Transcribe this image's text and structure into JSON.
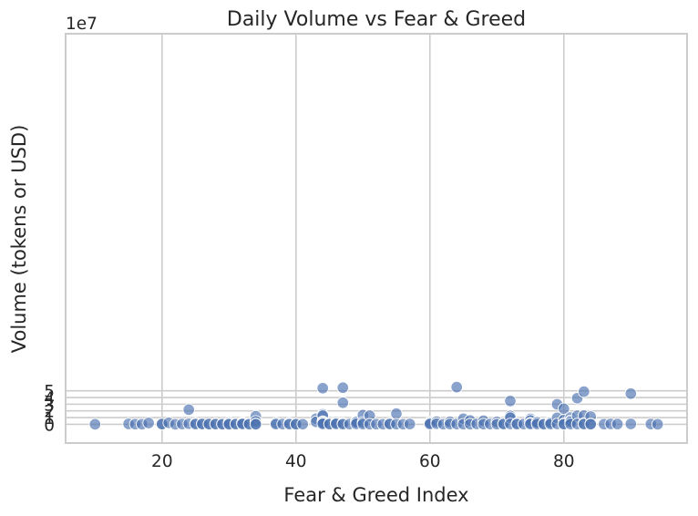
{
  "chart_data": {
    "type": "scatter",
    "title": "Daily Volume vs Fear & Greed",
    "xlabel": "Fear & Greed Index",
    "ylabel": "Volume (tokens or USD)",
    "y_offset_text": "1e7",
    "xlim": [
      5.6,
      98.4
    ],
    "ylim": [
      -2.8,
      58.3
    ],
    "x_ticks": [
      20,
      40,
      60,
      80
    ],
    "y_ticks": [
      0,
      1,
      2,
      3,
      4,
      5
    ],
    "grid": true,
    "y_units": "×1e7 (scaled)",
    "points": [
      [
        10,
        0.0
      ],
      [
        15,
        0.06
      ],
      [
        16,
        0.03
      ],
      [
        17,
        0.02
      ],
      [
        18,
        0.2
      ],
      [
        20,
        0.02
      ],
      [
        20,
        0.04
      ],
      [
        21,
        0.22
      ],
      [
        22,
        0.01
      ],
      [
        23,
        0.05
      ],
      [
        24,
        2.18
      ],
      [
        24,
        0.08
      ],
      [
        25,
        0.17
      ],
      [
        25,
        0.03
      ],
      [
        26,
        0.1
      ],
      [
        26,
        0.04
      ],
      [
        27,
        0.02
      ],
      [
        27,
        0.05
      ],
      [
        28,
        0.08
      ],
      [
        28,
        0.03
      ],
      [
        29,
        0.06
      ],
      [
        29,
        0.02
      ],
      [
        30,
        0.25
      ],
      [
        30,
        0.07
      ],
      [
        30,
        0.01
      ],
      [
        31,
        0.1
      ],
      [
        31,
        0.03
      ],
      [
        32,
        0.22
      ],
      [
        32,
        0.15
      ],
      [
        32,
        0.05
      ],
      [
        33,
        0.08
      ],
      [
        33,
        0.02
      ],
      [
        34,
        1.2
      ],
      [
        34,
        0.44
      ],
      [
        34,
        0.06
      ],
      [
        34,
        0.01
      ],
      [
        37,
        0.18
      ],
      [
        37,
        0.03
      ],
      [
        38,
        0.05
      ],
      [
        39,
        0.17
      ],
      [
        39,
        0.02
      ],
      [
        40,
        0.04
      ],
      [
        40,
        0.01
      ],
      [
        41,
        0.02
      ],
      [
        43,
        0.84
      ],
      [
        43,
        0.37
      ],
      [
        44,
        5.39
      ],
      [
        44,
        1.48
      ],
      [
        44,
        1.28
      ],
      [
        44,
        0.4
      ],
      [
        44,
        0.32
      ],
      [
        44,
        0.15
      ],
      [
        44,
        0.06
      ],
      [
        45,
        0.08
      ],
      [
        45,
        0.03
      ],
      [
        46,
        0.31
      ],
      [
        46,
        0.14
      ],
      [
        46,
        0.06
      ],
      [
        47,
        5.48
      ],
      [
        47,
        3.21
      ],
      [
        47,
        0.14
      ],
      [
        47,
        0.02
      ],
      [
        48,
        0.05
      ],
      [
        49,
        0.49
      ],
      [
        49,
        0.43
      ],
      [
        49,
        0.3
      ],
      [
        49,
        0.06
      ],
      [
        50,
        1.38
      ],
      [
        50,
        0.28
      ],
      [
        50,
        0.04
      ],
      [
        51,
        1.28
      ],
      [
        51,
        0.02
      ],
      [
        52,
        0.03
      ],
      [
        53,
        0.02
      ],
      [
        54,
        0.12
      ],
      [
        54,
        0.04
      ],
      [
        55,
        1.6
      ],
      [
        55,
        0.03
      ],
      [
        56,
        0.02
      ],
      [
        57,
        0.04
      ],
      [
        60,
        0.32
      ],
      [
        60,
        0.18
      ],
      [
        60,
        0.05
      ],
      [
        61,
        0.39
      ],
      [
        61,
        0.08
      ],
      [
        62,
        0.02
      ],
      [
        63,
        0.37
      ],
      [
        63,
        0.04
      ],
      [
        64,
        5.55
      ],
      [
        64,
        0.05
      ],
      [
        65,
        0.84
      ],
      [
        65,
        0.03
      ],
      [
        66,
        0.57
      ],
      [
        66,
        0.02
      ],
      [
        67,
        0.06
      ],
      [
        68,
        0.53
      ],
      [
        68,
        0.03
      ],
      [
        69,
        0.05
      ],
      [
        70,
        0.34
      ],
      [
        70,
        0.02
      ],
      [
        71,
        0.1
      ],
      [
        71,
        0.04
      ],
      [
        72,
        3.48
      ],
      [
        72,
        1.25
      ],
      [
        72,
        0.99
      ],
      [
        72,
        0.06
      ],
      [
        73,
        0.12
      ],
      [
        73,
        0.03
      ],
      [
        74,
        0.05
      ],
      [
        75,
        0.8
      ],
      [
        75,
        0.57
      ],
      [
        75,
        0.15
      ],
      [
        75,
        0.04
      ],
      [
        76,
        0.3
      ],
      [
        76,
        0.28
      ],
      [
        76,
        0.05
      ],
      [
        77,
        0.08
      ],
      [
        77,
        0.02
      ],
      [
        78,
        0.36
      ],
      [
        78,
        0.22
      ],
      [
        78,
        0.04
      ],
      [
        79,
        2.98
      ],
      [
        79,
        0.97
      ],
      [
        79,
        0.06
      ],
      [
        80,
        2.32
      ],
      [
        80,
        0.66
      ],
      [
        80,
        0.08
      ],
      [
        80,
        0.02
      ],
      [
        81,
        1.0
      ],
      [
        81,
        0.53
      ],
      [
        81,
        0.35
      ],
      [
        81,
        0.05
      ],
      [
        82,
        3.9
      ],
      [
        82,
        1.28
      ],
      [
        82,
        0.04
      ],
      [
        83,
        4.88
      ],
      [
        83,
        1.3
      ],
      [
        83,
        0.12
      ],
      [
        83,
        0.03
      ],
      [
        84,
        1.15
      ],
      [
        84,
        0.06
      ],
      [
        84,
        0.02
      ],
      [
        86,
        0.03
      ],
      [
        87,
        0.06
      ],
      [
        88,
        0.04
      ],
      [
        90,
        4.59
      ],
      [
        90,
        0.06
      ],
      [
        93,
        0.05
      ],
      [
        94,
        0.01
      ]
    ]
  }
}
